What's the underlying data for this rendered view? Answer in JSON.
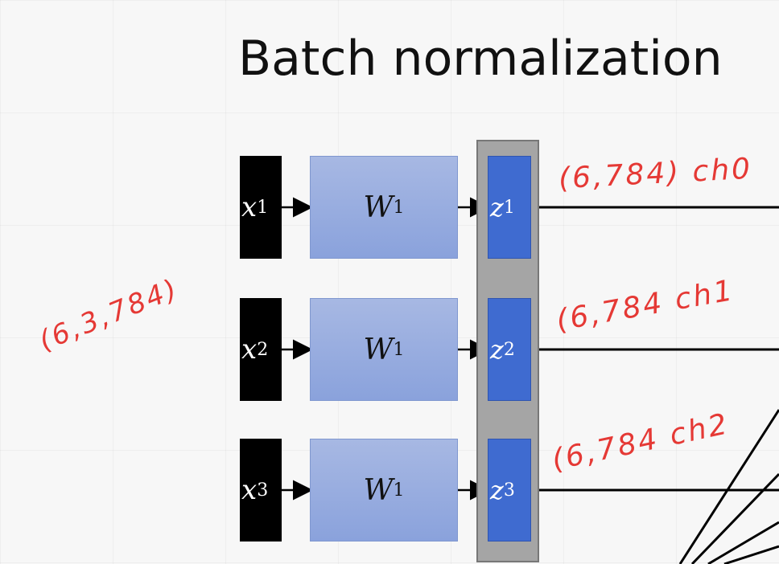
{
  "slide": {
    "title": "Batch normalization"
  },
  "inputs": [
    {
      "var": "x",
      "sup": "1"
    },
    {
      "var": "x",
      "sup": "2"
    },
    {
      "var": "x",
      "sup": "3"
    }
  ],
  "weights": [
    {
      "var": "W",
      "sup": "1"
    },
    {
      "var": "W",
      "sup": "1"
    },
    {
      "var": "W",
      "sup": "1"
    }
  ],
  "outputs": [
    {
      "var": "z",
      "sup": "1"
    },
    {
      "var": "z",
      "sup": "2"
    },
    {
      "var": "z",
      "sup": "3"
    }
  ],
  "annotations": {
    "input_shape": "(6,3,784)",
    "ch0": "(6,784) ch0",
    "ch1": "(6,784 ch1",
    "ch2": "(6,784 ch2"
  },
  "colors": {
    "annotation": "#e53935",
    "weight_box": "#8aa2dc",
    "z_box": "#3f6bd0",
    "input_box": "#000000",
    "batch_column": "#a5a5a5"
  }
}
